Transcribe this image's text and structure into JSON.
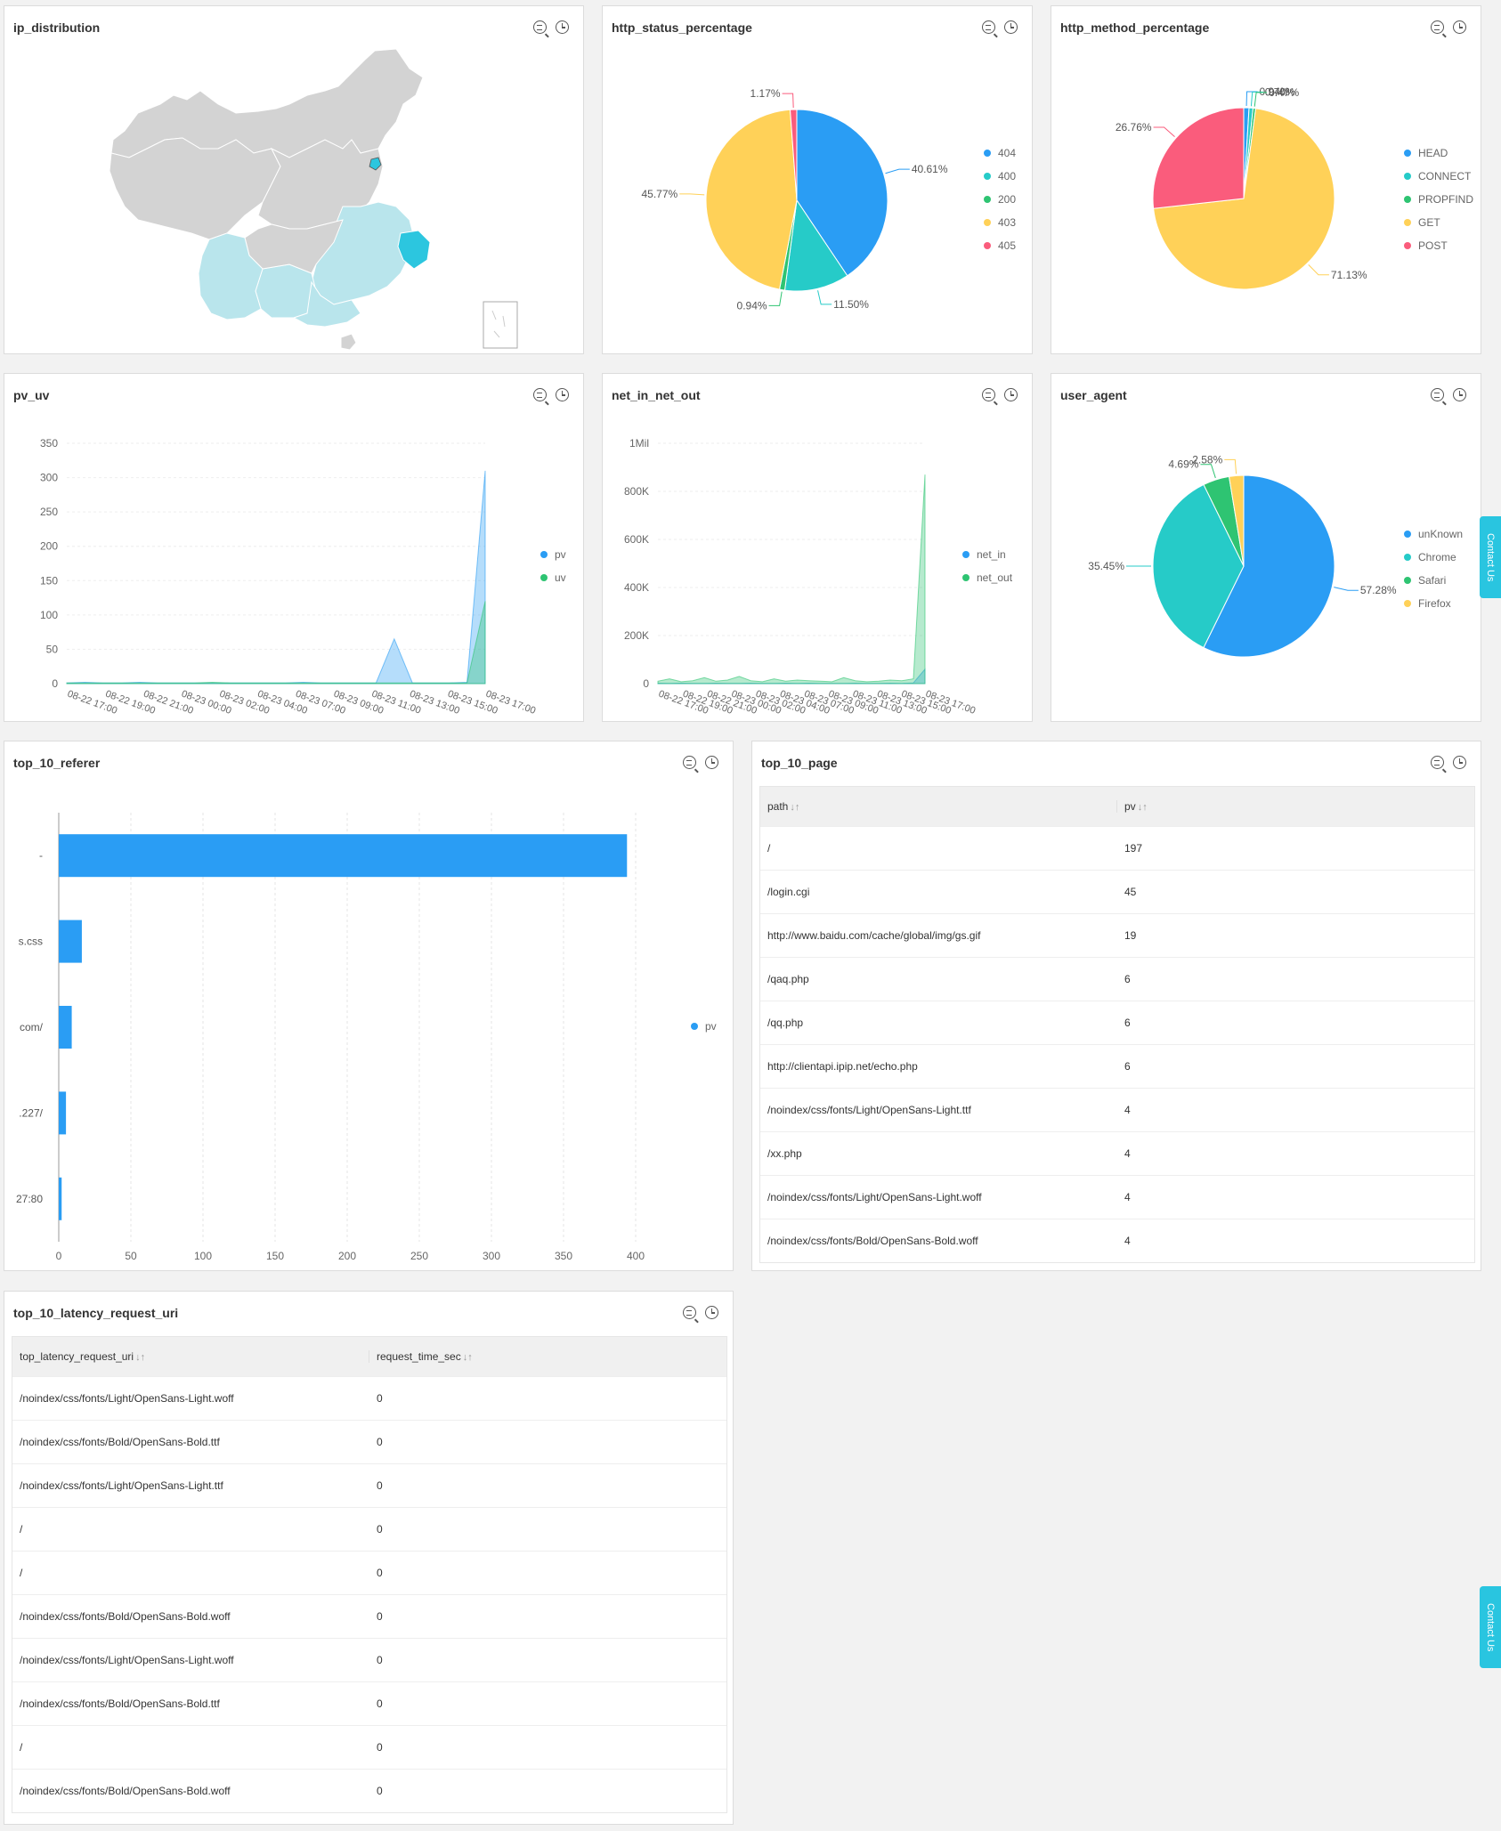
{
  "panels": {
    "ip_distribution": {
      "title": "ip_distribution"
    },
    "http_status": {
      "title": "http_status_percentage"
    },
    "http_method": {
      "title": "http_method_percentage"
    },
    "pv_uv": {
      "title": "pv_uv"
    },
    "net": {
      "title": "net_in_net_out"
    },
    "user_agent": {
      "title": "user_agent"
    },
    "referer": {
      "title": "top_10_referer"
    },
    "page": {
      "title": "top_10_page"
    },
    "latency": {
      "title": "top_10_latency_request_uri"
    }
  },
  "icons": {
    "search": "search-icon",
    "history": "clock-icon"
  },
  "contact_label": "Contact Us",
  "chart_data": [
    {
      "id": "http_status_percentage",
      "type": "pie",
      "slices": [
        {
          "label": "404",
          "value": 40.61,
          "display": "40.61%",
          "color": "#2a9df4"
        },
        {
          "label": "400",
          "value": 11.5,
          "display": "11.50%",
          "color": "#26cbc8"
        },
        {
          "label": "200",
          "value": 0.94,
          "display": "0.94%",
          "color": "#2ec472"
        },
        {
          "label": "403",
          "value": 45.77,
          "display": "45.77%",
          "color": "#ffd158"
        },
        {
          "label": "405",
          "value": 1.17,
          "display": "1.17%",
          "color": "#fa5c7c"
        }
      ]
    },
    {
      "id": "http_method_percentage",
      "type": "pie",
      "slices": [
        {
          "label": "HEAD",
          "value": 0.94,
          "display": "0.94%",
          "color": "#2a9df4"
        },
        {
          "label": "CONNECT",
          "value": 0.7,
          "display": "0.70%",
          "color": "#26cbc8"
        },
        {
          "label": "PROPFIND",
          "value": 0.47,
          "display": "0.47%",
          "color": "#2ec472"
        },
        {
          "label": "GET",
          "value": 71.13,
          "display": "71.13%",
          "color": "#ffd158"
        },
        {
          "label": "POST",
          "value": 26.76,
          "display": "26.76%",
          "color": "#fa5c7c"
        }
      ]
    },
    {
      "id": "user_agent",
      "type": "pie",
      "slices": [
        {
          "label": "unKnown",
          "value": 57.28,
          "display": "57.28%",
          "color": "#2a9df4"
        },
        {
          "label": "Chrome",
          "value": 35.45,
          "display": "35.45%",
          "color": "#26cbc8"
        },
        {
          "label": "Safari",
          "value": 4.69,
          "display": "4.69%",
          "color": "#2ec472"
        },
        {
          "label": "Firefox",
          "value": 2.58,
          "display": "2.58%",
          "color": "#ffd158"
        }
      ]
    },
    {
      "id": "pv_uv",
      "type": "area",
      "ylim": [
        0,
        350
      ],
      "yticks": [
        "0",
        "50",
        "100",
        "150",
        "200",
        "250",
        "300",
        "350"
      ],
      "xticks": [
        "08-22 17:00",
        "08-22 19:00",
        "08-22 21:00",
        "08-23 00:00",
        "08-23 02:00",
        "08-23 04:00",
        "08-23 07:00",
        "08-23 09:00",
        "08-23 11:00",
        "08-23 13:00",
        "08-23 15:00",
        "08-23 17:00"
      ],
      "series": [
        {
          "name": "pv",
          "color": "#2a9df4",
          "values": [
            1,
            2,
            1,
            1,
            2,
            1,
            1,
            1,
            1,
            1,
            1,
            1,
            1,
            2,
            1,
            1,
            1,
            1,
            65,
            1,
            1,
            1,
            2,
            310
          ]
        },
        {
          "name": "uv",
          "color": "#2ec472",
          "values": [
            1,
            1,
            1,
            1,
            1,
            1,
            1,
            1,
            2,
            1,
            1,
            1,
            1,
            1,
            1,
            1,
            1,
            1,
            1,
            1,
            1,
            1,
            1,
            120
          ]
        }
      ]
    },
    {
      "id": "net_in_net_out",
      "type": "area",
      "ylim": [
        0,
        1000000
      ],
      "yticks": [
        "0",
        "200K",
        "400K",
        "600K",
        "800K",
        "1Mil"
      ],
      "xticks": [
        "08-22 17:00",
        "08-22 19:00",
        "08-22 21:00",
        "08-23 00:00",
        "08-23 02:00",
        "08-23 04:00",
        "08-23 07:00",
        "08-23 09:00",
        "08-23 11:00",
        "08-23 13:00",
        "08-23 15:00",
        "08-23 17:00"
      ],
      "series": [
        {
          "name": "net_in",
          "color": "#2a9df4",
          "values": [
            2000,
            1000,
            2000,
            1000,
            1000,
            2000,
            1000,
            1000,
            2000,
            1000,
            1000,
            2000,
            1000,
            2000,
            1000,
            1000,
            1000,
            2000,
            1000,
            1000,
            2000,
            1000,
            3000,
            60000
          ]
        },
        {
          "name": "net_out",
          "color": "#2ec472",
          "values": [
            10000,
            20000,
            8000,
            12000,
            25000,
            10000,
            15000,
            30000,
            12000,
            8000,
            20000,
            10000,
            15000,
            12000,
            10000,
            8000,
            25000,
            12000,
            8000,
            10000,
            15000,
            12000,
            20000,
            870000
          ]
        }
      ]
    },
    {
      "id": "top_10_referer",
      "type": "bar",
      "orientation": "horizontal",
      "categories": [
        "-",
        "s.css",
        "com/",
        ".227/",
        "27:80"
      ],
      "series": [
        {
          "name": "pv",
          "color": "#2a9df4",
          "values": [
            394,
            16,
            9,
            5,
            2
          ]
        }
      ],
      "xlim": [
        0,
        400
      ],
      "xticks": [
        "0",
        "50",
        "100",
        "150",
        "200",
        "250",
        "300",
        "350",
        "400"
      ]
    }
  ],
  "top_10_page": {
    "headers": [
      "path",
      "pv"
    ],
    "rows": [
      [
        "/",
        "197"
      ],
      [
        "/login.cgi",
        "45"
      ],
      [
        "http://www.baidu.com/cache/global/img/gs.gif",
        "19"
      ],
      [
        "/qaq.php",
        "6"
      ],
      [
        "/qq.php",
        "6"
      ],
      [
        "http://clientapi.ipip.net/echo.php",
        "6"
      ],
      [
        "/noindex/css/fonts/Light/OpenSans-Light.ttf",
        "4"
      ],
      [
        "/xx.php",
        "4"
      ],
      [
        "/noindex/css/fonts/Light/OpenSans-Light.woff",
        "4"
      ],
      [
        "/noindex/css/fonts/Bold/OpenSans-Bold.woff",
        "4"
      ]
    ]
  },
  "top_10_latency": {
    "headers": [
      "top_latency_request_uri",
      "request_time_sec"
    ],
    "rows": [
      [
        "/noindex/css/fonts/Light/OpenSans-Light.woff",
        "0"
      ],
      [
        "/noindex/css/fonts/Bold/OpenSans-Bold.ttf",
        "0"
      ],
      [
        "/noindex/css/fonts/Light/OpenSans-Light.ttf",
        "0"
      ],
      [
        "/",
        "0"
      ],
      [
        "/",
        "0"
      ],
      [
        "/noindex/css/fonts/Bold/OpenSans-Bold.woff",
        "0"
      ],
      [
        "/noindex/css/fonts/Light/OpenSans-Light.woff",
        "0"
      ],
      [
        "/noindex/css/fonts/Bold/OpenSans-Bold.ttf",
        "0"
      ],
      [
        "/",
        "0"
      ],
      [
        "/noindex/css/fonts/Bold/OpenSans-Bold.woff",
        "0"
      ]
    ]
  },
  "colors": {
    "accent": "#2a9df4",
    "contact": "#29c5e0",
    "map_base": "#d0d0d0",
    "map_light": "#b8e6ee",
    "map_highlight": "#2ec5e0"
  }
}
